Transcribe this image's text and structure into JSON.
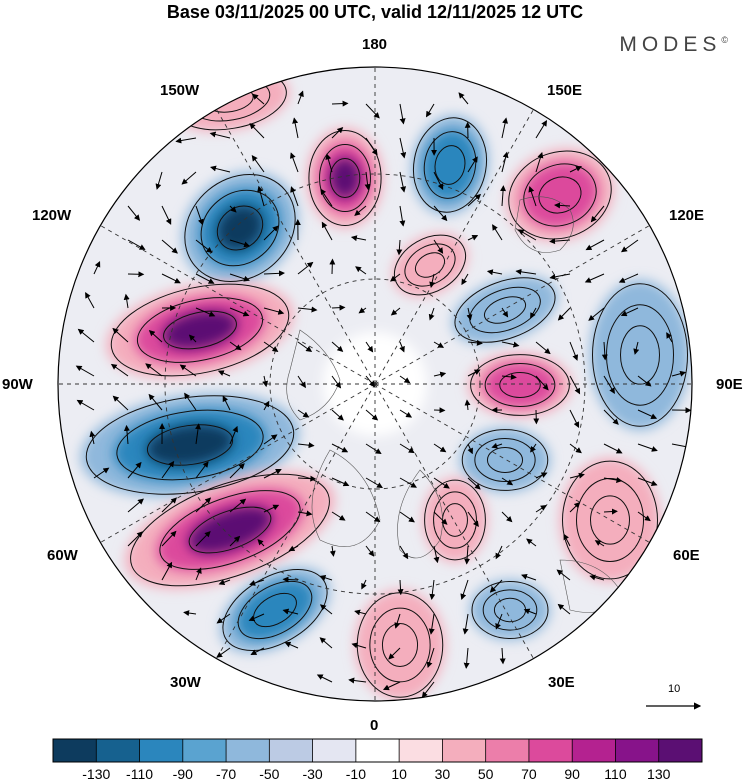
{
  "title": "Base 03/11/2025 00 UTC, valid 12/11/2025 12 UTC",
  "brand": "MODES",
  "brand_mark": "©",
  "longitude_labels": {
    "lon_180": "180",
    "lon_150w": "150W",
    "lon_150e": "150E",
    "lon_120w": "120W",
    "lon_120e": "120E",
    "lon_90w": "90W",
    "lon_90e": "90E",
    "lon_60w": "60W",
    "lon_60e": "60E",
    "lon_30w": "30W",
    "lon_30e": "30E",
    "lon_0": "0"
  },
  "reference_vector": "10",
  "colorbar": {
    "labels": [
      "-130",
      "-110",
      "-90",
      "-70",
      "-50",
      "-30",
      "-10",
      "10",
      "30",
      "50",
      "70",
      "90",
      "110",
      "130"
    ],
    "colors": [
      "#0d3b5e",
      "#16618f",
      "#2b86bd",
      "#5aa3d0",
      "#8fb8dc",
      "#bccbe4",
      "#e4e6f2",
      "#ffffff",
      "#fbdde2",
      "#f4aebd",
      "#ec7eaa",
      "#dc4a9c",
      "#b42290",
      "#87138a",
      "#5b0f73"
    ]
  },
  "anomaly_colors": {
    "neg_strong": "#0d3b5e",
    "neg_mid": "#2b86bd",
    "neg_weak": "#8fb8dc",
    "pos_weak": "#f4aebd",
    "pos_mid": "#dc4a9c",
    "pos_strong": "#5b0f73"
  }
}
